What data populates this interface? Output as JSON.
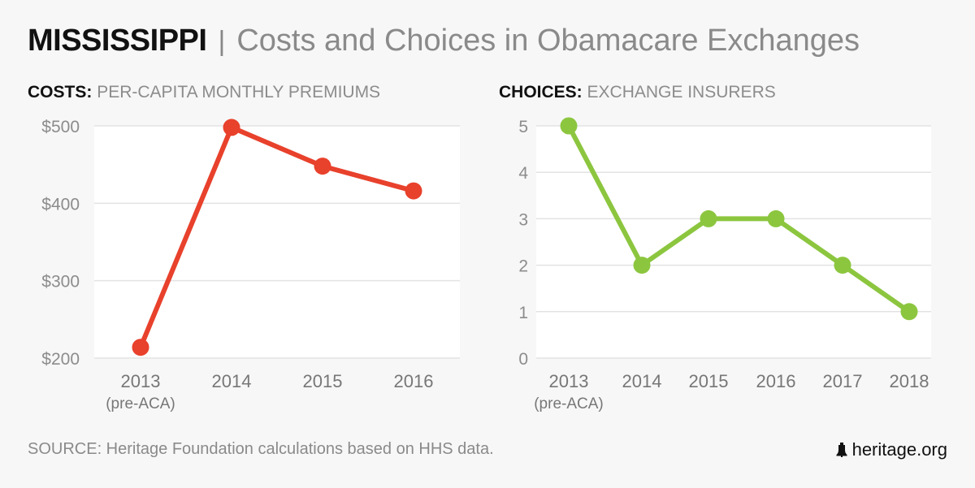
{
  "header": {
    "state": "MISSISSIPPI",
    "separator": "|",
    "subtitle": "Costs and Choices in Obamacare Exchanges"
  },
  "footer": {
    "source": "SOURCE: Heritage Foundation calculations based on HHS data.",
    "brand": "heritage.org",
    "brand_icon": "liberty-bell-icon"
  },
  "colors": {
    "costs_line": "#e8412c",
    "choices_line": "#8cc63f",
    "background": "#f7f7f7",
    "plot_background": "#ffffff",
    "gridline": "#e3e3e3",
    "tick_text": "#8c8c8c"
  },
  "chart_data": [
    {
      "type": "line",
      "title_bold": "COSTS:",
      "title": "PER-CAPITA MONTHLY PREMIUMS",
      "xlabel": "",
      "ylabel": "",
      "categories": [
        "2013",
        "2014",
        "2015",
        "2016"
      ],
      "category_sublabels": [
        "(pre-ACA)",
        "",
        "",
        ""
      ],
      "series": [
        {
          "name": "Per-capita monthly premium",
          "values": [
            214,
            498,
            448,
            416
          ]
        }
      ],
      "ylim": [
        200,
        500
      ],
      "yticks": [
        200,
        300,
        400,
        500
      ],
      "ytick_labels": [
        "$200",
        "$300",
        "$400",
        "$500"
      ],
      "grid": true,
      "legend": "none"
    },
    {
      "type": "line",
      "title_bold": "CHOICES:",
      "title": "EXCHANGE INSURERS",
      "xlabel": "",
      "ylabel": "",
      "categories": [
        "2013",
        "2014",
        "2015",
        "2016",
        "2017",
        "2018"
      ],
      "category_sublabels": [
        "(pre-ACA)",
        "",
        "",
        "",
        "",
        ""
      ],
      "series": [
        {
          "name": "Exchange insurers",
          "values": [
            5,
            2,
            3,
            3,
            2,
            1
          ]
        }
      ],
      "ylim": [
        0,
        5
      ],
      "yticks": [
        0,
        1,
        2,
        3,
        4,
        5
      ],
      "ytick_labels": [
        "0",
        "1",
        "2",
        "3",
        "4",
        "5"
      ],
      "grid": true,
      "legend": "none"
    }
  ]
}
